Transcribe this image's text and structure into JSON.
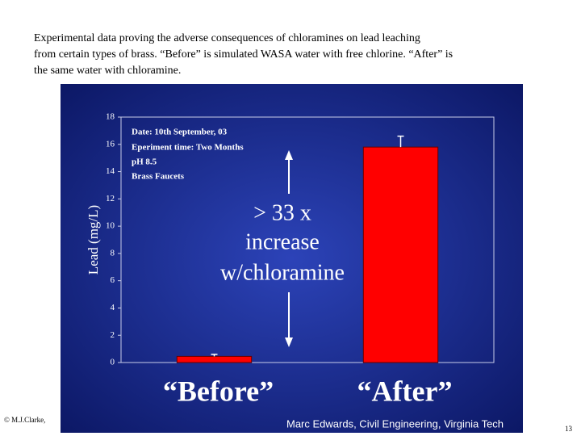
{
  "caption": [
    "Experimental data proving the adverse consequences of chloramines on lead leaching",
    "from certain types of brass. “Before” is simulated WASA water with free chlorine. “After” is",
    "the same water with chloramine."
  ],
  "chart_data": {
    "type": "bar",
    "ylabel": "Lead (mg/L)",
    "categories": [
      "“Before”",
      "“After”"
    ],
    "values": [
      0.45,
      15.8
    ],
    "errors": [
      0.15,
      0.8
    ],
    "color": "#ff0000",
    "ylim": [
      0,
      18
    ],
    "yticks": [
      0,
      2,
      4,
      6,
      8,
      10,
      12,
      14,
      16,
      18
    ],
    "annotations": [
      "Date: 10th September, 03",
      "Eperiment time: Two Months",
      "pH 8.5",
      "Brass Faucets"
    ],
    "callout": [
      "> 33 x",
      "increase",
      "w/chloramine"
    ]
  },
  "footer": {
    "credit": "Marc Edwards, Civil Engineering, Virginia Tech",
    "copyright": "© M.J.Clarke,",
    "page": "13"
  }
}
